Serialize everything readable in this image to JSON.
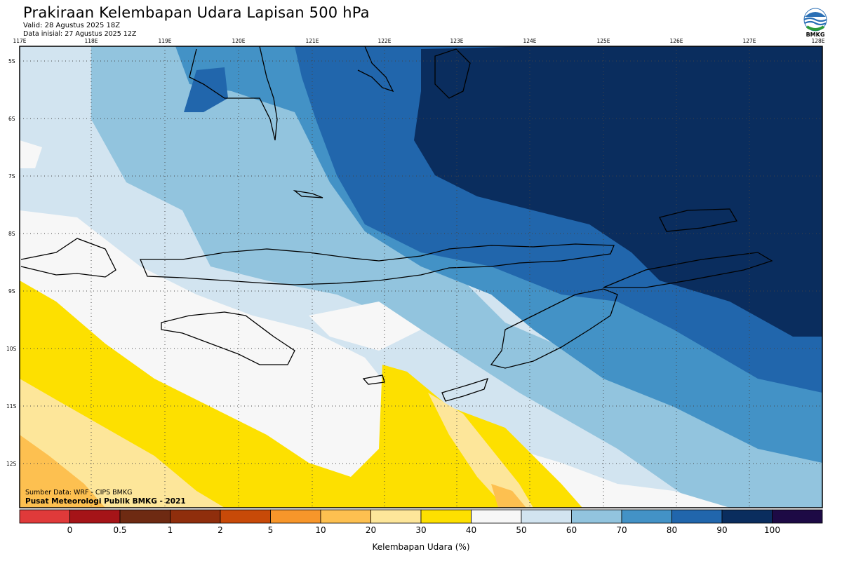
{
  "header": {
    "title": "Prakiraan Kelembapan Udara Lapisan 500 hPa",
    "valid": "Valid: 28 Agustus 2025 18Z",
    "initial": "Data inisial: 27 Agustus 2025 12Z",
    "logo_text": "BMKG"
  },
  "map": {
    "lon_labels": [
      "117E",
      "118E",
      "119E",
      "120E",
      "121E",
      "122E",
      "123E",
      "124E",
      "125E",
      "126E",
      "127E",
      "128E"
    ],
    "lat_labels": [
      "5S",
      "6S",
      "7S",
      "8S",
      "9S",
      "10S",
      "11S",
      "12S"
    ]
  },
  "footer": {
    "source": "Sumber Data: WRF - CIPS BMKG",
    "credit": "Pusat Meteorologi Publik BMKG - 2021"
  },
  "colorbar": {
    "title": "Kelembapan Udara (%)",
    "levels": [
      "0",
      "0.5",
      "1",
      "2",
      "5",
      "10",
      "20",
      "30",
      "40",
      "50",
      "60",
      "70",
      "80",
      "90",
      "100"
    ],
    "colors": [
      "#e03a3a",
      "#a51418",
      "#6e2a12",
      "#8f2e0c",
      "#c84a08",
      "#f7962a",
      "#fdc050",
      "#fde69a",
      "#fde000",
      "#f7f7f7",
      "#d2e4f0",
      "#92c4de",
      "#4392c6",
      "#2166ac",
      "#0a2d5e",
      "#1d0a45"
    ]
  }
}
